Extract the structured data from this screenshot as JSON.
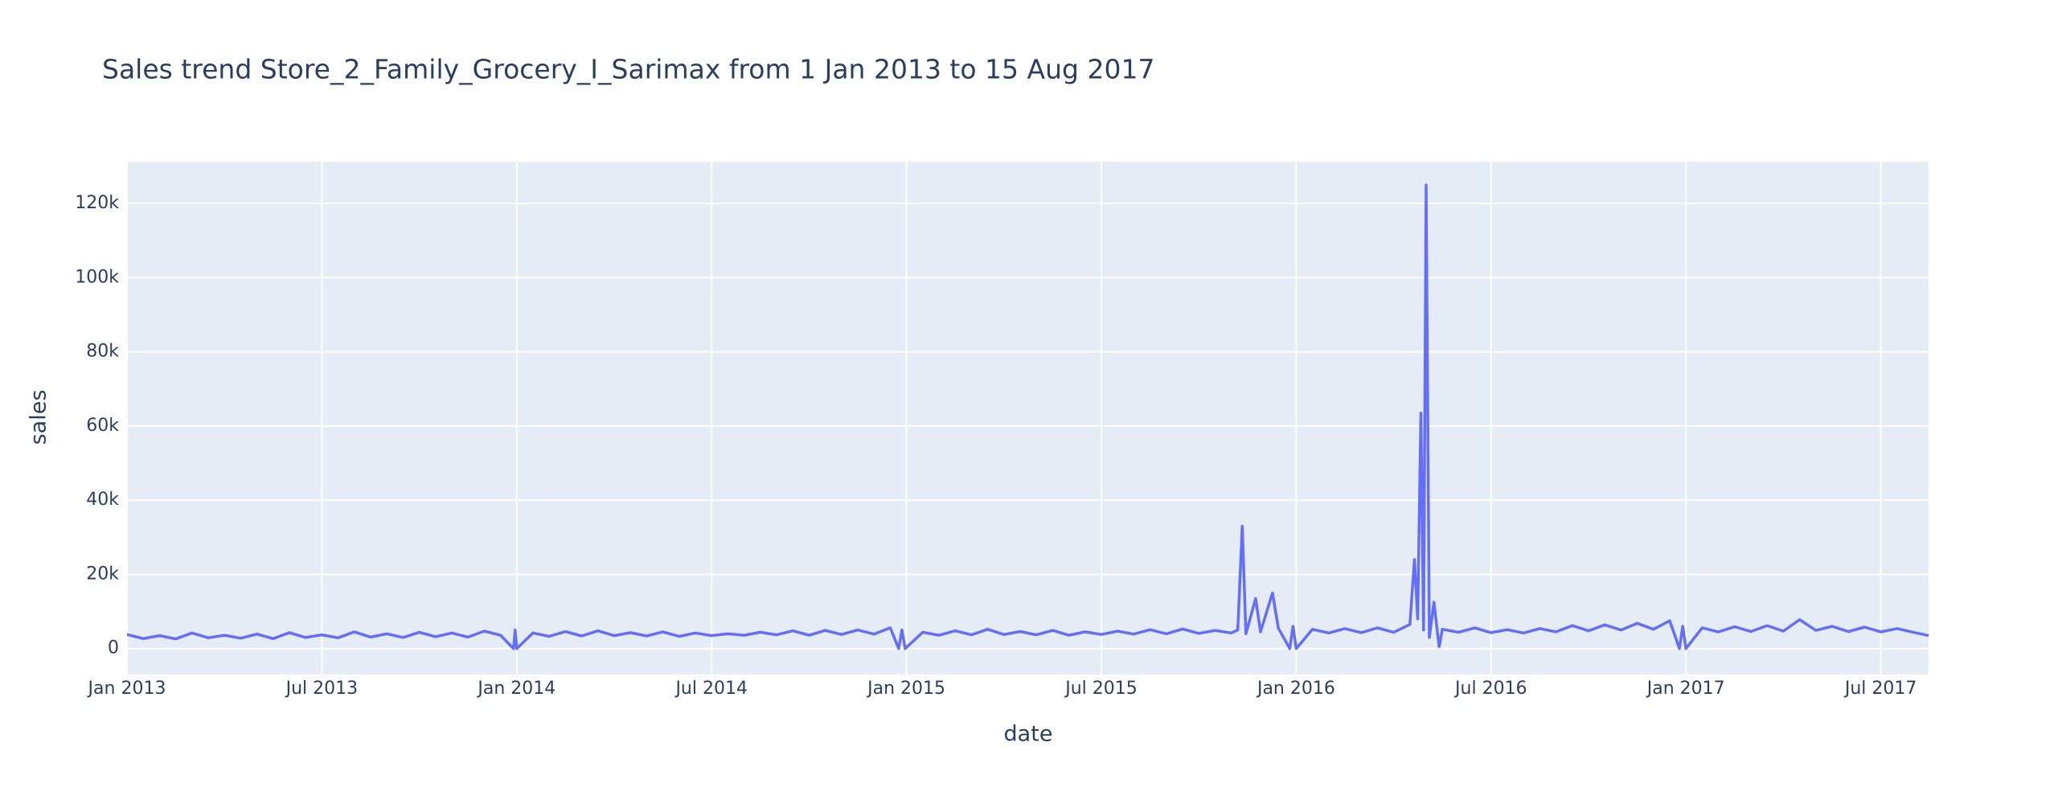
{
  "chart_data": {
    "type": "line",
    "title": "Sales trend Store_2_Family_Grocery_I_Sarimax from  1 Jan 2013 to 15 Aug 2017",
    "x_label": "date",
    "y_label": "sales",
    "x": [
      0,
      0.5,
      1,
      1.5,
      2,
      2.5,
      3,
      3.5,
      4,
      4.5,
      5,
      5.5,
      6,
      6.5,
      7,
      7.5,
      8,
      8.5,
      9,
      9.5,
      10,
      10.5,
      11,
      11.5,
      11.9,
      11.95,
      12.0,
      12.5,
      13,
      13.5,
      14,
      14.5,
      15,
      15.5,
      16,
      16.5,
      17,
      17.5,
      18,
      18.5,
      19,
      19.5,
      20,
      20.5,
      21,
      21.5,
      22,
      22.5,
      23,
      23.5,
      23.76,
      23.86,
      23.96,
      24.5,
      25,
      25.5,
      26,
      26.5,
      27,
      27.5,
      28,
      28.5,
      29,
      29.5,
      30,
      30.5,
      31,
      31.5,
      32,
      32.5,
      33,
      33.5,
      34,
      34.2,
      34.34,
      34.45,
      34.75,
      34.9,
      35.27,
      35.45,
      35.8,
      35.9,
      36.0,
      36.5,
      37,
      37.5,
      38,
      38.5,
      39,
      39.5,
      39.64,
      39.74,
      39.84,
      39.92,
      40.0,
      40.1,
      40.24,
      40.4,
      40.5,
      41,
      41.5,
      42,
      42.5,
      43,
      43.5,
      44,
      44.5,
      45,
      45.5,
      46,
      46.5,
      47,
      47.5,
      47.8,
      47.9,
      48.0,
      48.5,
      49,
      49.5,
      50,
      50.5,
      51,
      51.5,
      52,
      52.5,
      53,
      53.5,
      54,
      54.5,
      55,
      55.47
    ],
    "series": [
      {
        "name": "sales",
        "color": "#636efa",
        "values": [
          3800,
          2700,
          3500,
          2600,
          4200,
          2900,
          3600,
          2800,
          3900,
          2700,
          4300,
          3000,
          3700,
          2900,
          4500,
          3100,
          4000,
          3000,
          4400,
          3200,
          4200,
          3100,
          4700,
          3600,
          0,
          5000,
          0,
          4200,
          3300,
          4600,
          3400,
          4800,
          3500,
          4300,
          3400,
          4500,
          3300,
          4200,
          3500,
          4000,
          3600,
          4400,
          3700,
          4800,
          3600,
          4900,
          3800,
          5000,
          3900,
          5600,
          0,
          5000,
          0,
          4400,
          3600,
          4800,
          3700,
          5200,
          3800,
          4600,
          3700,
          4900,
          3600,
          4500,
          3800,
          4700,
          3900,
          5100,
          4000,
          5300,
          4100,
          4900,
          4200,
          5000,
          33000,
          4000,
          13500,
          4500,
          15000,
          5500,
          0,
          6000,
          0,
          5200,
          4200,
          5400,
          4300,
          5600,
          4400,
          6500,
          24000,
          8000,
          63500,
          5000,
          125000,
          3000,
          12500,
          500,
          5200,
          4400,
          5600,
          4300,
          5100,
          4200,
          5400,
          4500,
          6200,
          4800,
          6400,
          5000,
          6800,
          5200,
          7500,
          0,
          6000,
          0,
          5600,
          4500,
          5900,
          4600,
          6200,
          4700,
          7800,
          4900,
          6000,
          4600,
          5800,
          4500,
          5400,
          4400,
          3500
        ]
      }
    ],
    "xlim": [
      0,
      55.47
    ],
    "xticks": [
      {
        "value": 0,
        "label": "Jan 2013"
      },
      {
        "value": 6,
        "label": "Jul 2013"
      },
      {
        "value": 12,
        "label": "Jan 2014"
      },
      {
        "value": 18,
        "label": "Jul 2014"
      },
      {
        "value": 24,
        "label": "Jan 2015"
      },
      {
        "value": 30,
        "label": "Jul 2015"
      },
      {
        "value": 36,
        "label": "Jan 2016"
      },
      {
        "value": 42,
        "label": "Jul 2016"
      },
      {
        "value": 48,
        "label": "Jan 2017"
      },
      {
        "value": 54,
        "label": "Jul 2017"
      }
    ],
    "ylim": [
      -7000,
      131300
    ],
    "yticks": [
      0,
      {
        "value": 20000,
        "label": "20k"
      },
      {
        "value": 40000,
        "label": "40k"
      },
      {
        "value": 60000,
        "label": "60k"
      },
      {
        "value": 80000,
        "label": "80k"
      },
      {
        "value": 100000,
        "label": "100k"
      },
      {
        "value": 120000,
        "label": "120k"
      }
    ],
    "grid": true
  }
}
